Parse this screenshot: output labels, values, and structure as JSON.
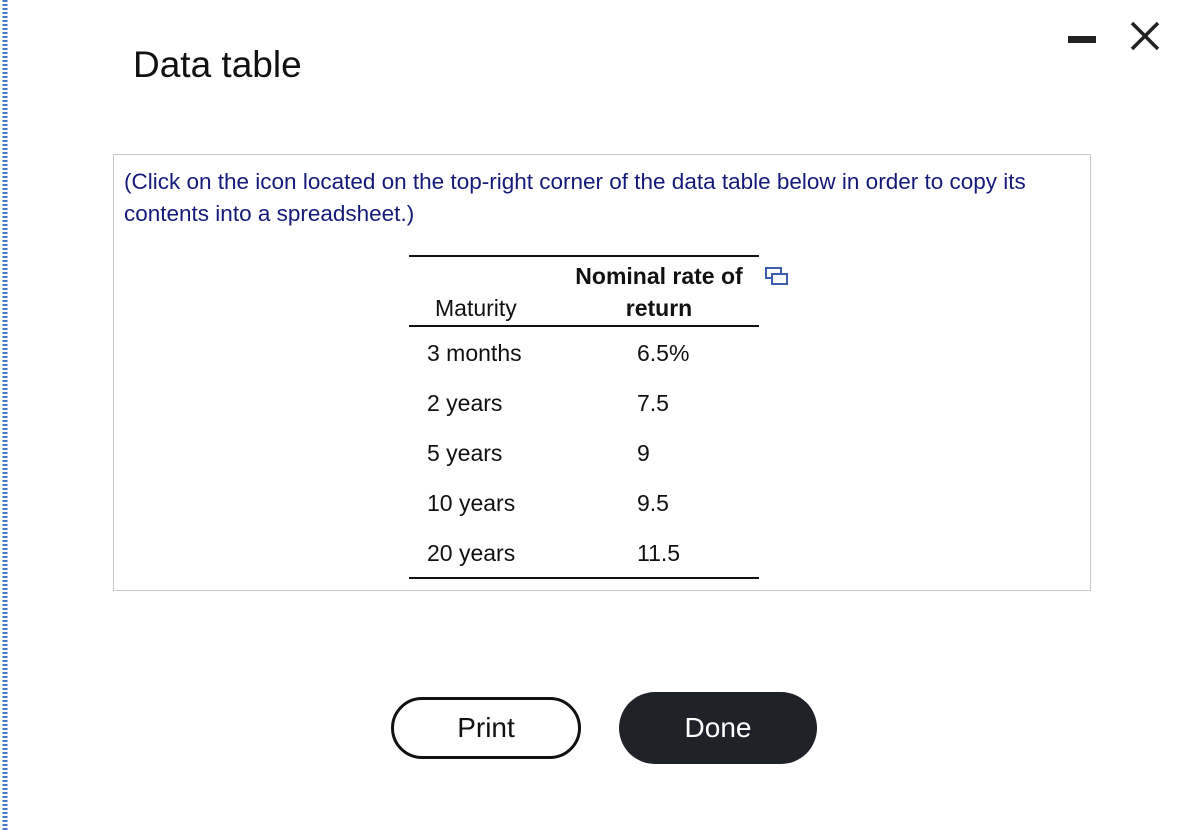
{
  "title": "Data table",
  "instruction": "(Click on the icon located on the top-right corner of the data table below in order to copy its contents into a spreadsheet.)",
  "table": {
    "headers": [
      "Maturity",
      "Nominal rate of return"
    ],
    "rows": [
      [
        "3 months",
        "6.5%"
      ],
      [
        "2 years",
        "7.5"
      ],
      [
        "5 years",
        "9"
      ],
      [
        "10 years",
        "9.5"
      ],
      [
        "20 years",
        "11.5"
      ]
    ]
  },
  "buttons": [
    "Print",
    "Done"
  ]
}
